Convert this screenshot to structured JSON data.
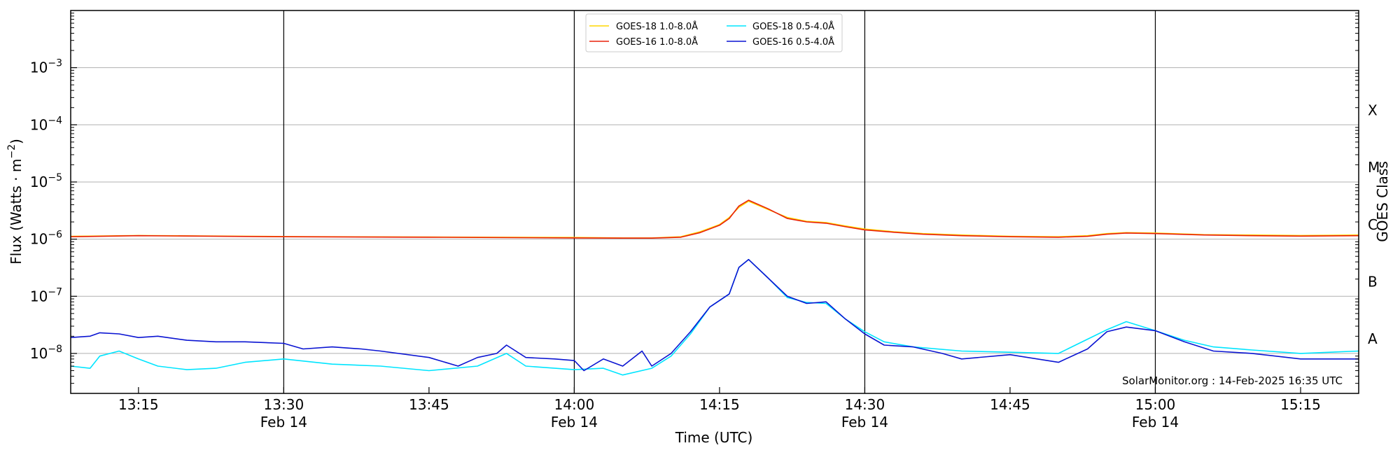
{
  "chart_data": {
    "type": "line",
    "ylabel_parts": [
      "Flux (Watts · m",
      "−2",
      ")"
    ],
    "xlabel": "Time (UTC)",
    "right_label": "GOES Class",
    "credit": "SolarMonitor.org : 14-Feb-2025 16:35 UTC",
    "y_scale": "log",
    "ylim": [
      2e-09,
      0.01
    ],
    "xlim": [
      "13:08",
      "15:21"
    ],
    "grid": "horizontal at decades",
    "legend_position": "top-center",
    "y_ticks": [
      {
        "base": "10",
        "exp": "−3",
        "value": 0.001
      },
      {
        "base": "10",
        "exp": "−4",
        "value": 0.0001
      },
      {
        "base": "10",
        "exp": "−5",
        "value": 1e-05
      },
      {
        "base": "10",
        "exp": "−6",
        "value": 1e-06
      },
      {
        "base": "10",
        "exp": "−7",
        "value": 1e-07
      },
      {
        "base": "10",
        "exp": "−8",
        "value": 1e-08
      }
    ],
    "x_ticks": [
      {
        "time": "13:15",
        "label": "13:15",
        "date": ""
      },
      {
        "time": "13:30",
        "label": "13:30",
        "date": "Feb 14"
      },
      {
        "time": "13:45",
        "label": "13:45",
        "date": ""
      },
      {
        "time": "14:00",
        "label": "14:00",
        "date": "Feb 14"
      },
      {
        "time": "14:15",
        "label": "14:15",
        "date": ""
      },
      {
        "time": "14:30",
        "label": "14:30",
        "date": "Feb 14"
      },
      {
        "time": "14:45",
        "label": "14:45",
        "date": ""
      },
      {
        "time": "15:00",
        "label": "15:00",
        "date": "Feb 14"
      },
      {
        "time": "15:15",
        "label": "15:15",
        "date": ""
      }
    ],
    "class_labels": [
      {
        "label": "X",
        "value": 0.0001
      },
      {
        "label": "M",
        "value": 1e-05
      },
      {
        "label": "C",
        "value": 1e-06
      },
      {
        "label": "B",
        "value": 1e-07
      },
      {
        "label": "A",
        "value": 1e-08
      }
    ],
    "vertical_lines": [
      "13:30",
      "14:00",
      "14:30",
      "15:00"
    ],
    "series": [
      {
        "name": "GOES-18 1.0-8.0Å",
        "color": "#FFD700",
        "x": [
          "13:08",
          "13:15",
          "13:30",
          "13:45",
          "14:00",
          "14:05",
          "14:08",
          "14:11",
          "14:13",
          "14:15",
          "14:16",
          "14:17",
          "14:18",
          "14:20",
          "14:22",
          "14:24",
          "14:26",
          "14:28",
          "14:30",
          "14:33",
          "14:36",
          "14:40",
          "14:45",
          "14:50",
          "14:53",
          "14:55",
          "14:57",
          "15:00",
          "15:05",
          "15:10",
          "15:15",
          "15:21"
        ],
        "y": [
          1.12e-06,
          1.16e-06,
          1.11e-06,
          1.09e-06,
          1.07e-06,
          1.05e-06,
          1.05e-06,
          1.1e-06,
          1.35e-06,
          1.8e-06,
          2.4e-06,
          3.6e-06,
          4.6e-06,
          3.3e-06,
          2.4e-06,
          2.05e-06,
          1.95e-06,
          1.7e-06,
          1.5e-06,
          1.35e-06,
          1.25e-06,
          1.18e-06,
          1.12e-06,
          1.1e-06,
          1.15e-06,
          1.25e-06,
          1.3e-06,
          1.28e-06,
          1.2e-06,
          1.18e-06,
          1.16e-06,
          1.18e-06
        ]
      },
      {
        "name": "GOES-16 1.0-8.0Å",
        "color": "#E8200C",
        "x": [
          "13:08",
          "13:15",
          "13:30",
          "13:45",
          "14:00",
          "14:05",
          "14:08",
          "14:11",
          "14:13",
          "14:15",
          "14:16",
          "14:17",
          "14:18",
          "14:20",
          "14:22",
          "14:24",
          "14:26",
          "14:28",
          "14:30",
          "14:33",
          "14:36",
          "14:40",
          "14:45",
          "14:50",
          "14:53",
          "14:55",
          "14:57",
          "15:00",
          "15:05",
          "15:10",
          "15:15",
          "15:21"
        ],
        "y": [
          1.1e-06,
          1.15e-06,
          1.1e-06,
          1.08e-06,
          1.05e-06,
          1.04e-06,
          1.04e-06,
          1.08e-06,
          1.3e-06,
          1.75e-06,
          2.3e-06,
          3.8e-06,
          4.8e-06,
          3.4e-06,
          2.3e-06,
          2e-06,
          1.9e-06,
          1.65e-06,
          1.45e-06,
          1.32e-06,
          1.22e-06,
          1.15e-06,
          1.1e-06,
          1.08e-06,
          1.12e-06,
          1.22e-06,
          1.28e-06,
          1.25e-06,
          1.18e-06,
          1.15e-06,
          1.13e-06,
          1.15e-06
        ]
      },
      {
        "name": "GOES-18 0.5-4.0Å",
        "color": "#00E5FF",
        "x": [
          "13:08",
          "13:10",
          "13:11",
          "13:13",
          "13:15",
          "13:17",
          "13:20",
          "13:23",
          "13:26",
          "13:30",
          "13:35",
          "13:40",
          "13:45",
          "13:50",
          "13:53",
          "13:55",
          "14:00",
          "14:03",
          "14:05",
          "14:08",
          "14:10",
          "14:12",
          "14:14",
          "14:16",
          "14:17",
          "14:18",
          "14:20",
          "14:22",
          "14:24",
          "14:26",
          "14:28",
          "14:30",
          "14:32",
          "14:35",
          "14:40",
          "14:45",
          "14:50",
          "14:55",
          "14:57",
          "15:00",
          "15:03",
          "15:06",
          "15:10",
          "15:15",
          "15:21"
        ],
        "y": [
          6e-09,
          5.5e-09,
          9e-09,
          1.1e-08,
          8e-09,
          6e-09,
          5.2e-09,
          5.5e-09,
          7e-09,
          8e-09,
          6.5e-09,
          6e-09,
          5e-09,
          6e-09,
          1e-08,
          6e-09,
          5.2e-09,
          5.5e-09,
          4.2e-09,
          5.5e-09,
          9e-09,
          2.2e-08,
          6.5e-08,
          1.1e-07,
          3.2e-07,
          4.4e-07,
          2.1e-07,
          9.5e-08,
          7.8e-08,
          7.5e-08,
          4e-08,
          2.4e-08,
          1.6e-08,
          1.3e-08,
          1.1e-08,
          1.05e-08,
          1e-08,
          2.6e-08,
          3.6e-08,
          2.5e-08,
          1.7e-08,
          1.3e-08,
          1.15e-08,
          1e-08,
          1.1e-08
        ]
      },
      {
        "name": "GOES-16 0.5-4.0Å",
        "color": "#0A14D2",
        "x": [
          "13:08",
          "13:10",
          "13:11",
          "13:13",
          "13:15",
          "13:17",
          "13:20",
          "13:23",
          "13:26",
          "13:30",
          "13:32",
          "13:35",
          "13:38",
          "13:40",
          "13:45",
          "13:48",
          "13:50",
          "13:52",
          "13:53",
          "13:55",
          "13:58",
          "14:00",
          "14:01",
          "14:03",
          "14:05",
          "14:07",
          "14:08",
          "14:10",
          "14:12",
          "14:14",
          "14:16",
          "14:17",
          "14:18",
          "14:20",
          "14:22",
          "14:24",
          "14:26",
          "14:28",
          "14:30",
          "14:32",
          "14:35",
          "14:38",
          "14:40",
          "14:45",
          "14:50",
          "14:53",
          "14:55",
          "14:57",
          "15:00",
          "15:03",
          "15:06",
          "15:10",
          "15:15",
          "15:21"
        ],
        "y": [
          1.9e-08,
          2e-08,
          2.3e-08,
          2.2e-08,
          1.9e-08,
          2e-08,
          1.7e-08,
          1.6e-08,
          1.6e-08,
          1.5e-08,
          1.2e-08,
          1.3e-08,
          1.2e-08,
          1.1e-08,
          8.5e-09,
          6e-09,
          8.5e-09,
          1e-08,
          1.4e-08,
          8.5e-09,
          8e-09,
          7.5e-09,
          5e-09,
          8e-09,
          6e-09,
          1.1e-08,
          6e-09,
          1e-08,
          2.4e-08,
          6.5e-08,
          1.1e-07,
          3.2e-07,
          4.4e-07,
          2.1e-07,
          1e-07,
          7.5e-08,
          8e-08,
          4e-08,
          2.2e-08,
          1.4e-08,
          1.3e-08,
          1e-08,
          8e-09,
          9.5e-09,
          7e-09,
          1.2e-08,
          2.4e-08,
          2.9e-08,
          2.5e-08,
          1.6e-08,
          1.1e-08,
          1e-08,
          8e-09,
          8e-09
        ]
      }
    ]
  }
}
